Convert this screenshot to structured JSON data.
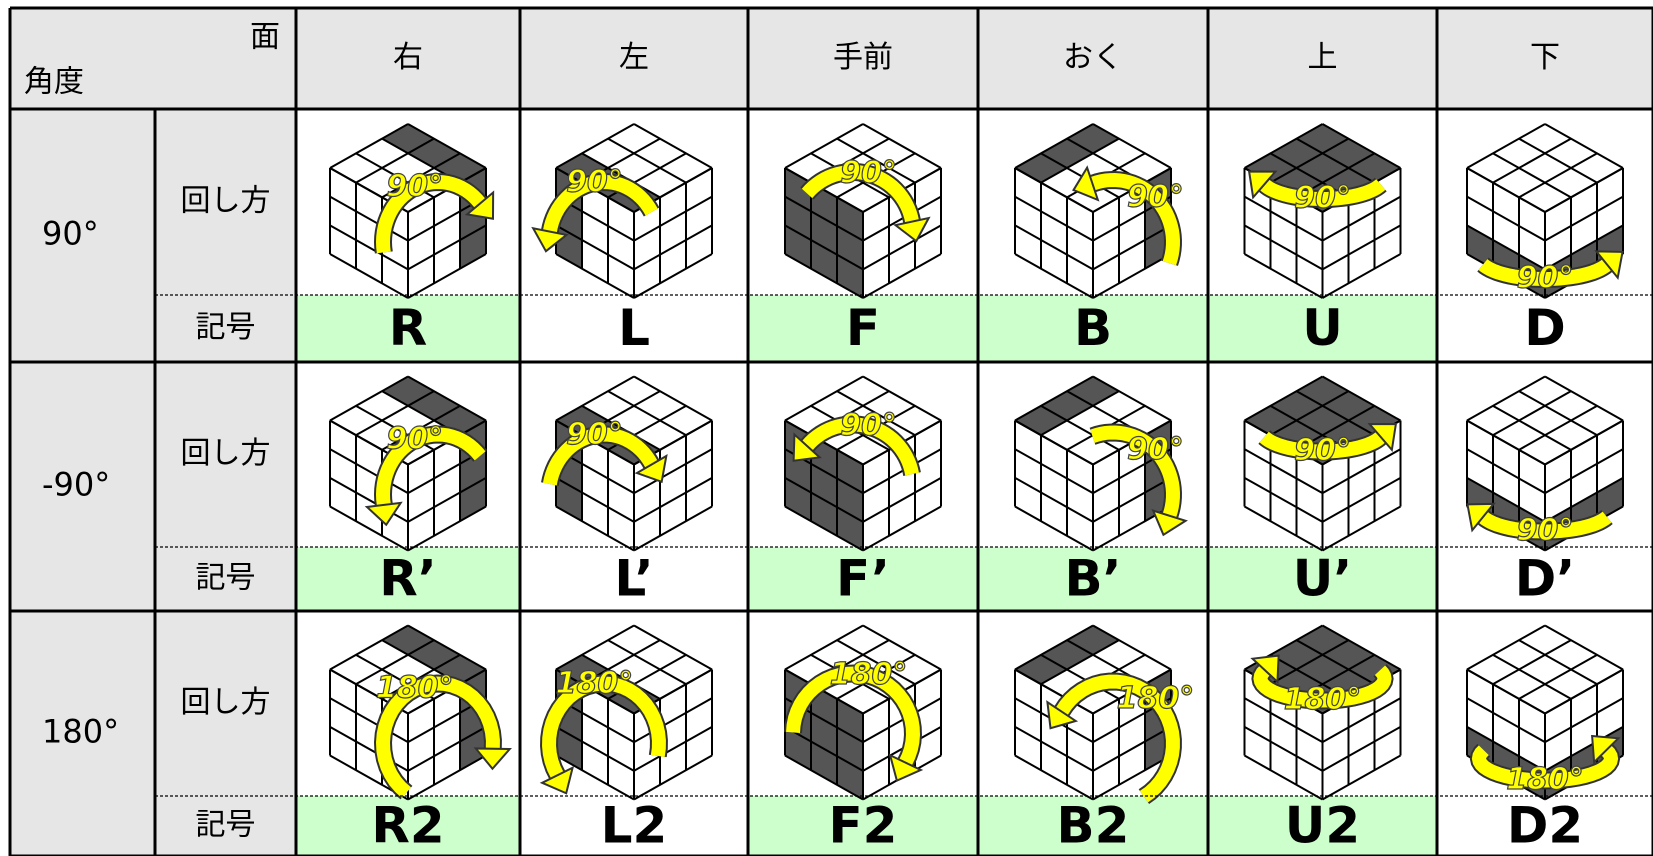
{
  "header": {
    "corner_face": "面",
    "corner_angle": "角度",
    "columns": [
      "右",
      "左",
      "手前",
      "おく",
      "上",
      "下"
    ]
  },
  "rows": [
    {
      "angle": "90°",
      "method_label": "回し方",
      "symbol_label": "記号",
      "arrow_label": "90°",
      "symbols": [
        "R",
        "L",
        "F",
        "B",
        "U",
        "D"
      ]
    },
    {
      "angle": "-90°",
      "method_label": "回し方",
      "symbol_label": "記号",
      "arrow_label": "90°",
      "symbols": [
        "R’",
        "L’",
        "F’",
        "B’",
        "U’",
        "D’"
      ]
    },
    {
      "angle": "180°",
      "method_label": "回し方",
      "symbol_label": "記号",
      "arrow_label": "180°",
      "symbols": [
        "R2",
        "L2",
        "F2",
        "B2",
        "U2",
        "D2"
      ]
    }
  ],
  "symbol_highlight": [
    true,
    false,
    true,
    true,
    true,
    false
  ],
  "highlight_color": "#ccffcc"
}
